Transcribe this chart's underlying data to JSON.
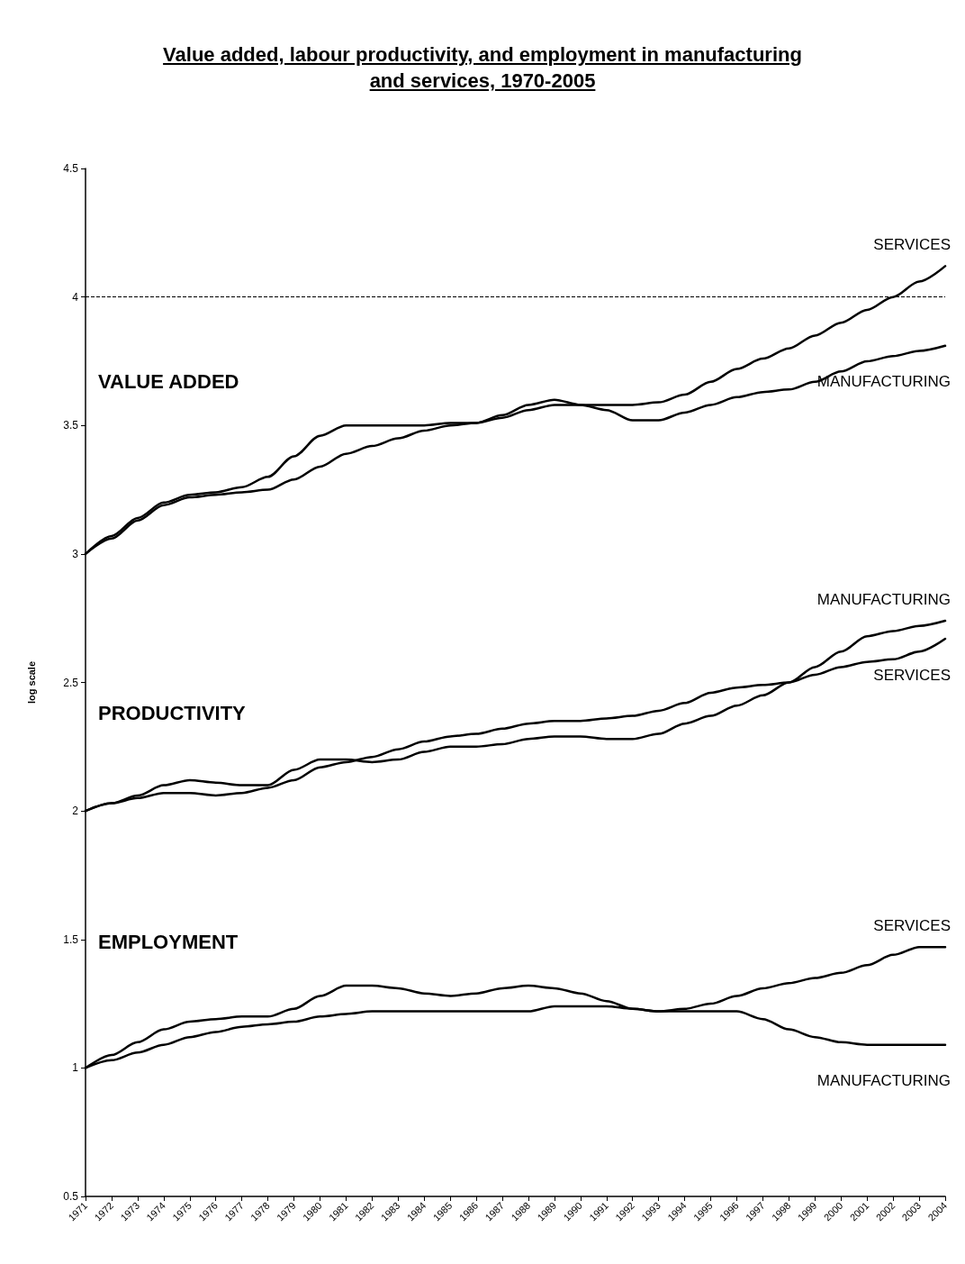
{
  "chart_data": {
    "type": "line",
    "title": "Value added, labour productivity, and employment in manufacturing and services, 1970-2005",
    "ylabel": "log scale",
    "categories": [
      "1971",
      "1972",
      "1973",
      "1974",
      "1975",
      "1976",
      "1977",
      "1978",
      "1979",
      "1980",
      "1981",
      "1982",
      "1983",
      "1984",
      "1985",
      "1986",
      "1987",
      "1988",
      "1989",
      "1990",
      "1991",
      "1992",
      "1993",
      "1994",
      "1995",
      "1996",
      "1997",
      "1998",
      "1999",
      "2000",
      "2001",
      "2002",
      "2003",
      "2004"
    ],
    "series": [
      {
        "name": "SERVICES",
        "color": "#000000",
        "values": [
          3.0,
          3.06,
          3.13,
          3.19,
          3.22,
          3.23,
          3.24,
          3.25,
          3.29,
          3.34,
          3.39,
          3.42,
          3.45,
          3.48,
          3.5,
          3.51,
          3.53,
          3.56,
          3.58,
          3.58,
          3.58,
          3.58,
          3.59,
          3.62,
          3.67,
          3.72,
          3.76,
          3.8,
          3.85,
          3.9,
          3.95,
          4.0,
          4.06,
          4.12
        ]
      },
      {
        "name": "MANUFACTURING",
        "color": "#000000",
        "values": [
          3.0,
          3.07,
          3.14,
          3.2,
          3.23,
          3.24,
          3.26,
          3.3,
          3.38,
          3.46,
          3.5,
          3.5,
          3.5,
          3.5,
          3.51,
          3.51,
          3.54,
          3.58,
          3.6,
          3.58,
          3.56,
          3.52,
          3.52,
          3.55,
          3.58,
          3.61,
          3.63,
          3.64,
          3.67,
          3.71,
          3.75,
          3.77,
          3.79,
          3.81
        ]
      },
      {
        "name": "MANUFACTURING",
        "color": "#000000",
        "values": [
          2.0,
          2.03,
          2.06,
          2.1,
          2.12,
          2.11,
          2.1,
          2.1,
          2.16,
          2.2,
          2.2,
          2.19,
          2.2,
          2.23,
          2.25,
          2.25,
          2.26,
          2.28,
          2.29,
          2.29,
          2.28,
          2.28,
          2.3,
          2.34,
          2.37,
          2.41,
          2.45,
          2.5,
          2.56,
          2.62,
          2.68,
          2.7,
          2.72,
          2.74
        ]
      },
      {
        "name": "SERVICES",
        "color": "#000000",
        "values": [
          2.0,
          2.03,
          2.05,
          2.07,
          2.07,
          2.06,
          2.07,
          2.09,
          2.12,
          2.17,
          2.19,
          2.21,
          2.24,
          2.27,
          2.29,
          2.3,
          2.32,
          2.34,
          2.35,
          2.35,
          2.36,
          2.37,
          2.39,
          2.42,
          2.46,
          2.48,
          2.49,
          2.5,
          2.53,
          2.56,
          2.58,
          2.59,
          2.62,
          2.67
        ]
      },
      {
        "name": "SERVICES",
        "color": "#000000",
        "values": [
          1.0,
          1.05,
          1.1,
          1.15,
          1.18,
          1.19,
          1.2,
          1.2,
          1.23,
          1.28,
          1.32,
          1.32,
          1.31,
          1.29,
          1.28,
          1.29,
          1.31,
          1.32,
          1.31,
          1.29,
          1.26,
          1.23,
          1.22,
          1.23,
          1.25,
          1.28,
          1.31,
          1.33,
          1.35,
          1.37,
          1.4,
          1.44,
          1.47,
          1.47
        ]
      },
      {
        "name": "MANUFACTURING",
        "color": "#000000",
        "values": [
          1.0,
          1.03,
          1.06,
          1.09,
          1.12,
          1.14,
          1.16,
          1.17,
          1.18,
          1.2,
          1.21,
          1.22,
          1.22,
          1.22,
          1.22,
          1.22,
          1.22,
          1.22,
          1.24,
          1.24,
          1.24,
          1.23,
          1.22,
          1.22,
          1.22,
          1.22,
          1.19,
          1.15,
          1.12,
          1.1,
          1.09,
          1.09,
          1.09,
          1.09
        ]
      }
    ],
    "annotations": [
      "VALUE ADDED",
      "PRODUCTIVITY",
      "EMPLOYMENT"
    ],
    "ylim": [
      0.5,
      4.5
    ],
    "yticks": [
      0.5,
      1,
      1.5,
      2,
      2.5,
      3,
      3.5,
      4,
      4.5
    ],
    "ref_lines": [
      {
        "axis": "y",
        "value": 4,
        "color": "#000000",
        "line_style": "dashed"
      }
    ],
    "grid": false,
    "legend": false,
    "marker": "none",
    "line_style": "solid"
  }
}
